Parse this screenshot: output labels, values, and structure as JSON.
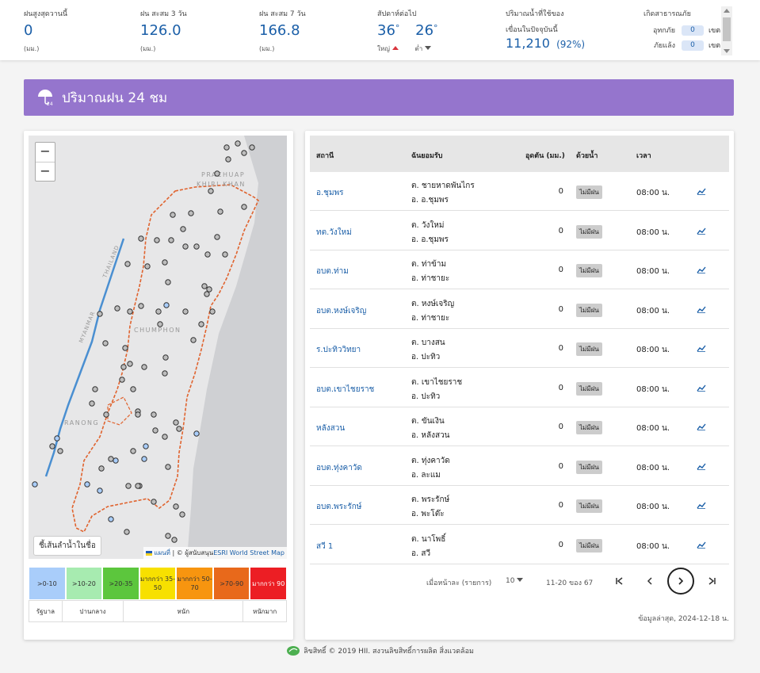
{
  "stats": {
    "max_today": {
      "label": "ฝนสูงสุดวานนี้",
      "value": "0",
      "unit": "(มม.)"
    },
    "acc3": {
      "label": "ฝน สะสม 3 วัน",
      "value": "126.0",
      "unit": "(มม.)"
    },
    "acc7": {
      "label": "ฝน สะสม 7 วัน",
      "value": "166.8",
      "unit": "(มม.)"
    },
    "temp": {
      "label": "สัปดาห์ต่อไป",
      "high": "36",
      "low": "26",
      "deg": "°",
      "high_label": "ใหญ่",
      "low_label": "ต่ำ"
    },
    "dam": {
      "label1": "ปริมาณน้ำที่ใช้ของ",
      "label2": "เขื่อนในปัจจุบันนี้",
      "value": "11,210",
      "percent": "(92%)"
    },
    "disaster": {
      "label": "เกิดสาธารณภัย",
      "flood_label": "อุทกภัย",
      "flood_value": "0",
      "drought_label": "ภัยแล้ง",
      "drought_value": "0",
      "unit": "เขต"
    }
  },
  "section": {
    "title": "ปริมาณฝน 24 ชม",
    "icon": "umbrella-24-icon"
  },
  "map": {
    "zoom_in": "−",
    "zoom_out": "−",
    "labels": {
      "prachuap": "PRACHUAP",
      "khiri": "KHIRI KHAN",
      "thailand": "THAILAND",
      "myanmar": "MYANMAR",
      "chumphon": "CHUMPHON",
      "ranong": "RANONG"
    },
    "river_button": "ชี้เส้นลำน้ำในชื่อ",
    "attribution_prefix": "แผนที่",
    "attribution_mid": " | © ผู้สนับสนุน",
    "attribution_link": "ESRI World Street Map"
  },
  "legend": {
    "ranges": [
      {
        "label": ">0-10",
        "color": "#a9cdfa"
      },
      {
        "label": ">10-20",
        "color": "#a7ebb0"
      },
      {
        "label": ">20-35",
        "color": "#5cc63d"
      },
      {
        "label": "มากกว่า 35-50",
        "color": "#f7e000"
      },
      {
        "label": "มากกว่า 50-70",
        "color": "#f7950f"
      },
      {
        "label": ">70-90",
        "color": "#e8691b"
      },
      {
        "label": "มากกว่า 90",
        "color": "#ec1e24"
      }
    ],
    "levels": [
      "รัฐบาล",
      "ปานกลาง",
      "หนัก",
      "หนักมาก"
    ]
  },
  "table": {
    "headers": {
      "station": "สถานี",
      "area": "ฉันยอมรับ",
      "rain": "อุดตัน (มม.)",
      "river": "ด้วยน้ำ",
      "time": "เวลา"
    },
    "rows": [
      {
        "station": "อ.ชุมพร",
        "tambon": "ต. ชายหาดพันไกร",
        "amphoe": "อ. อ.ชุมพร",
        "rain": "0",
        "status": "ไม่มีฝน",
        "time": "08:00 น."
      },
      {
        "station": "ทต.วังใหม่",
        "tambon": "ต. วังใหม่",
        "amphoe": "อ. อ.ชุมพร",
        "rain": "0",
        "status": "ไม่มีฝน",
        "time": "08:00 น."
      },
      {
        "station": "อบต.ท่าม",
        "tambon": "ต. ท่าข้าม",
        "amphoe": "อ. ท่าชายะ",
        "rain": "0",
        "status": "ไม่มีฝน",
        "time": "08:00 น."
      },
      {
        "station": "อบต.หงษ์เจริญ",
        "tambon": "ต. หงษ์เจริญ",
        "amphoe": "อ. ท่าชายะ",
        "rain": "0",
        "status": "ไม่มีฝน",
        "time": "08:00 น."
      },
      {
        "station": "ร.ปะทิววิทยา",
        "tambon": "ต. บางสน",
        "amphoe": "อ. ปะทิว",
        "rain": "0",
        "status": "ไม่มีฝน",
        "time": "08:00 น."
      },
      {
        "station": "อบต.เขาไชยราช",
        "tambon": "ต. เขาไชยราช",
        "amphoe": "อ. ปะทิว",
        "rain": "0",
        "status": "ไม่มีฝน",
        "time": "08:00 น."
      },
      {
        "station": "หลังสวน",
        "tambon": "ต. ขันเงิน",
        "amphoe": "อ. หลังสวน",
        "rain": "0",
        "status": "ไม่มีฝน",
        "time": "08:00 น."
      },
      {
        "station": "อบต.ทุ่งคาวัด",
        "tambon": "ต. ทุ่งคาวัด",
        "amphoe": "อ. ละแม",
        "rain": "0",
        "status": "ไม่มีฝน",
        "time": "08:00 น."
      },
      {
        "station": "อบต.พระรักษ์",
        "tambon": "ต. พระรักษ์",
        "amphoe": "อ. พะโต๊ะ",
        "rain": "0",
        "status": "ไม่มีฝน",
        "time": "08:00 น."
      },
      {
        "station": "สวี 1",
        "tambon": "ต. นาโพธิ์",
        "amphoe": "อ. สวี",
        "rain": "0",
        "status": "ไม่มีฝน",
        "time": "08:00 น."
      }
    ],
    "pager": {
      "per_page_label": "เมื่อหน้าละ (รายการ)",
      "per_page_value": "10",
      "count": "11-20 ของ 67"
    },
    "updated": "ข้อมูลล่าสุด, 2024-12-18 น."
  },
  "footer": {
    "text": "ลิขสิทธิ์ © 2019 HII. สงวนลิขสิทธิ์การผลิต สิ่งแวดล้อม"
  }
}
